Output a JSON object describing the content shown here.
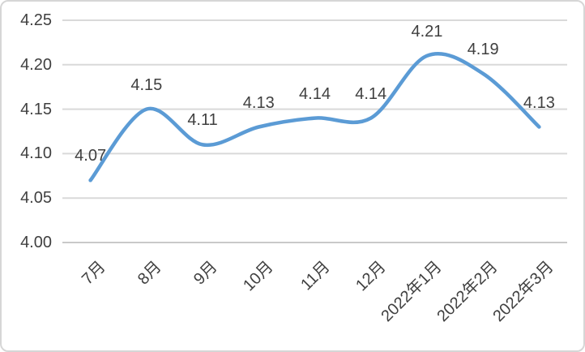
{
  "chart_data": {
    "type": "line",
    "categories": [
      "7月",
      "8月",
      "9月",
      "10月",
      "11月",
      "12月",
      "2022年1月",
      "2022年2月",
      "2022年3月"
    ],
    "values": [
      4.07,
      4.15,
      4.11,
      4.13,
      4.14,
      4.14,
      4.21,
      4.19,
      4.13
    ],
    "point_labels": [
      "4.07",
      "4.15",
      "4.11",
      "4.13",
      "4.14",
      "4.14",
      "4.21",
      "4.19",
      "4.13"
    ],
    "title": "",
    "xlabel": "",
    "ylabel": "",
    "ylim": [
      4.0,
      4.25
    ],
    "ytick_step": 0.05,
    "yticks": [
      "4.00",
      "4.05",
      "4.10",
      "4.15",
      "4.20",
      "4.25"
    ],
    "grid": true,
    "legend": "none",
    "smooth": true,
    "line_color": "#5b9bd5",
    "gridline_color": "#d9d9d9",
    "axisline_color": "#c9c9c9",
    "text_color": "#404040",
    "background_color": "#ffffff",
    "border_color": "#d6d6d6"
  }
}
